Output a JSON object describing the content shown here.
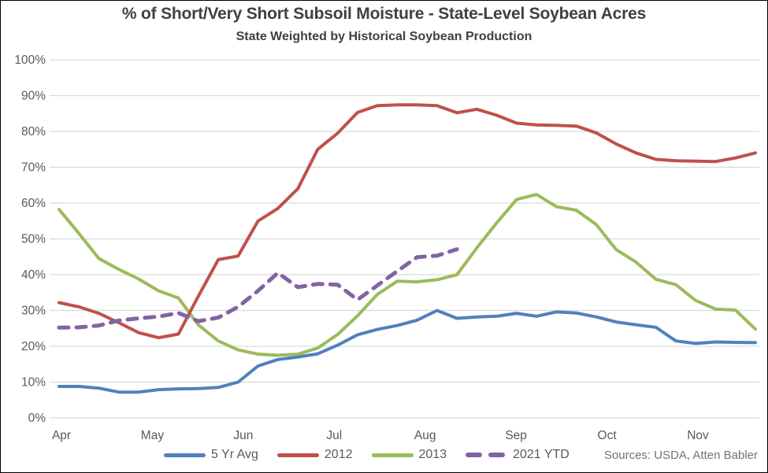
{
  "chart_data": {
    "type": "line",
    "title": "% of Short/Very Short Subsoil Moisture - State-Level Soybean Acres",
    "subtitle": "State Weighted by Historical Soybean Production",
    "source_note": "Sources: USDA, Atten Babler",
    "x_ticks": [
      "Apr",
      "May",
      "Jun",
      "Jul",
      "Aug",
      "Sep",
      "Oct",
      "Nov"
    ],
    "y_ticks": [
      "0%",
      "10%",
      "20%",
      "30%",
      "40%",
      "50%",
      "60%",
      "70%",
      "80%",
      "90%",
      "100%"
    ],
    "y_axis": {
      "min": 0,
      "max": 100,
      "step": 10,
      "unit": "%"
    },
    "x_axis_note": "weekly observations, April through November",
    "grid": "horizontal-only",
    "legend_position": "bottom",
    "colors": {
      "grid": "#D9D9D9",
      "axis_text": "#595959",
      "title_text": "#404040"
    },
    "series": [
      {
        "name": "5 Yr Avg",
        "color": "#4F81BD",
        "style": "solid",
        "values": [
          8.8,
          8.8,
          8.3,
          7.2,
          7.2,
          7.9,
          8.1,
          8.2,
          8.5,
          10,
          14.5,
          16.3,
          17,
          17.9,
          20.3,
          23.2,
          24.7,
          25.8,
          27.3,
          30,
          27.8,
          28.2,
          28.4,
          29.2,
          28.4,
          29.6,
          29.3,
          28.2,
          26.8,
          26,
          25.3,
          21.5,
          20.8,
          21.2,
          21.1,
          21
        ]
      },
      {
        "name": "2012",
        "color": "#C0504D",
        "style": "solid",
        "values": [
          32.2,
          31,
          29.2,
          26.6,
          23.8,
          22.4,
          23.4,
          34,
          44.2,
          45.2,
          55,
          58.5,
          64,
          75,
          79.5,
          85.3,
          87.2,
          87.4,
          87.4,
          87.2,
          85.2,
          86.2,
          84.5,
          82.3,
          81.8,
          81.7,
          81.5,
          79.6,
          76.5,
          74,
          72.2,
          71.8,
          71.7,
          71.6,
          72.6,
          74
        ]
      },
      {
        "name": "2013",
        "color": "#9BBB59",
        "style": "solid",
        "values": [
          58.2,
          51.5,
          44.5,
          41.5,
          38.8,
          35.5,
          33.5,
          26,
          21.5,
          19,
          17.8,
          17.5,
          17.8,
          19.5,
          23.3,
          28.5,
          34.5,
          38.2,
          38,
          38.6,
          40,
          47.5,
          54.5,
          61,
          62.4,
          59,
          58,
          54,
          47,
          43.5,
          38.7,
          37.2,
          32.8,
          30.4,
          30.1,
          24.8
        ]
      },
      {
        "name": "2021 YTD",
        "color": "#8064A2",
        "style": "dashed",
        "values": [
          25.2,
          25.3,
          25.8,
          27.2,
          27.8,
          28.3,
          29.3,
          27,
          28,
          31,
          35.5,
          40.5,
          36.5,
          37.4,
          37.2,
          33,
          37,
          41,
          44.9,
          45.3,
          47.1
        ]
      }
    ]
  }
}
